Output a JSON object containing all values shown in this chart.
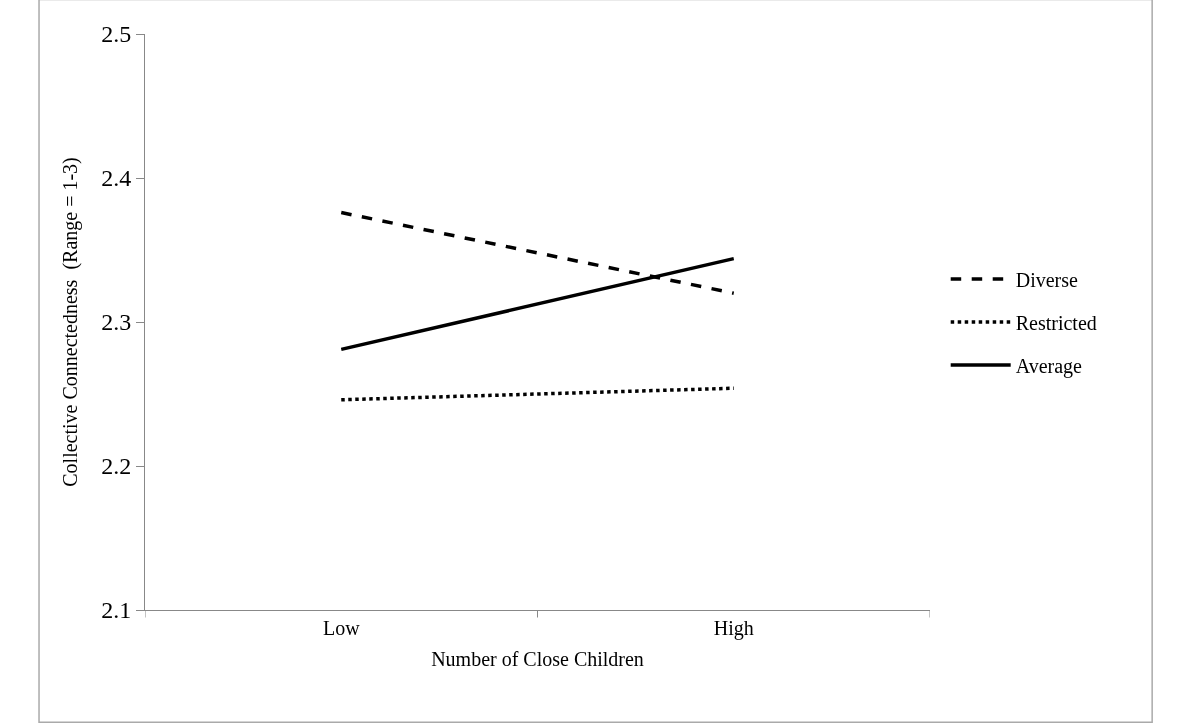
{
  "chart_data": {
    "type": "line",
    "xlabel": "Number of Close Children",
    "ylabel": "Collective Connectedness  (Range = 1-3)",
    "categories": [
      "Low",
      "High"
    ],
    "series": [
      {
        "name": "Diverse",
        "color": "#000000",
        "line_style": "dashed",
        "values": [
          2.376,
          2.32
        ]
      },
      {
        "name": "Restricted",
        "color": "#000000",
        "line_style": "dotted",
        "values": [
          2.246,
          2.254
        ]
      },
      {
        "name": "Average",
        "color": "#000000",
        "line_style": "solid",
        "values": [
          2.281,
          2.344
        ]
      }
    ],
    "ylim": [
      2.1,
      2.5
    ],
    "yticks": [
      2.1,
      2.2,
      2.3,
      2.4,
      2.5
    ],
    "legend": "right",
    "marker": "none"
  }
}
